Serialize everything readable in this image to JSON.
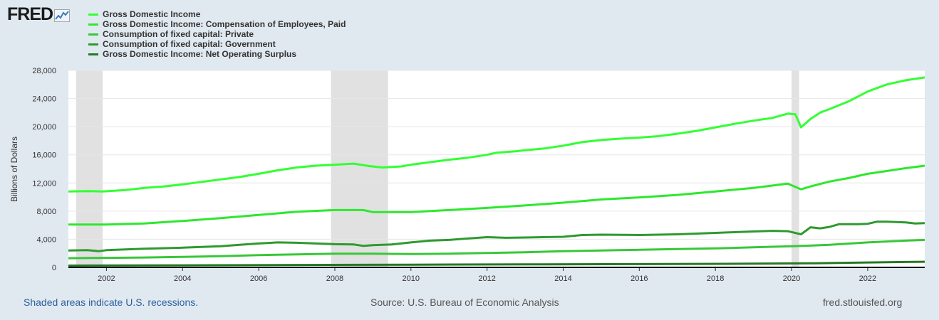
{
  "logo": {
    "text": "FRED",
    "icon": "trend-graph-icon"
  },
  "legend": [
    {
      "label": "Gross Domestic Income",
      "color": "#33ff33"
    },
    {
      "label": "Gross Domestic Income: Compensation of Employees, Paid",
      "color": "#2de82d"
    },
    {
      "label": "Consumption of fixed capital: Private",
      "color": "#38c738"
    },
    {
      "label": "Consumption of fixed capital: Government",
      "color": "#2e9a2e"
    },
    {
      "label": "Gross Domestic Income: Net Operating Surplus",
      "color": "#237a23"
    }
  ],
  "footer": {
    "left": "Shaded areas indicate U.S. recessions.",
    "center": "Source: U.S. Bureau of Economic Analysis",
    "right": "fred.stlouisfed.org"
  },
  "chart_data": {
    "type": "line",
    "ylabel": "Billions of Dollars",
    "xlim": [
      2001.0,
      2023.5
    ],
    "ylim": [
      0,
      28000
    ],
    "y_ticks": [
      0,
      4000,
      8000,
      12000,
      16000,
      20000,
      24000,
      28000
    ],
    "y_tick_labels": [
      "0",
      "4,000",
      "8,000",
      "12,000",
      "16,000",
      "20,000",
      "24,000",
      "28,000"
    ],
    "x_ticks": [
      2002,
      2004,
      2006,
      2008,
      2010,
      2012,
      2014,
      2016,
      2018,
      2020,
      2022
    ],
    "x_tick_labels": [
      "2002",
      "2004",
      "2006",
      "2008",
      "2010",
      "2012",
      "2014",
      "2016",
      "2018",
      "2020",
      "2022"
    ],
    "grid": true,
    "recessions": [
      [
        2001.2,
        2001.9
      ],
      [
        2007.9,
        2009.4
      ],
      [
        2020.0,
        2020.2
      ]
    ],
    "series": [
      {
        "name": "Gross Domestic Income",
        "color": "#33ff33",
        "points": [
          [
            2001,
            10800
          ],
          [
            2001.5,
            10850
          ],
          [
            2001.9,
            10800
          ],
          [
            2002.5,
            11000
          ],
          [
            2003,
            11300
          ],
          [
            2003.5,
            11500
          ],
          [
            2004,
            11800
          ],
          [
            2004.5,
            12150
          ],
          [
            2005,
            12500
          ],
          [
            2005.5,
            12850
          ],
          [
            2006,
            13300
          ],
          [
            2006.5,
            13800
          ],
          [
            2007,
            14200
          ],
          [
            2007.5,
            14450
          ],
          [
            2008,
            14600
          ],
          [
            2008.5,
            14750
          ],
          [
            2008.9,
            14400
          ],
          [
            2009.25,
            14200
          ],
          [
            2009.75,
            14350
          ],
          [
            2010,
            14600
          ],
          [
            2010.5,
            14950
          ],
          [
            2011,
            15300
          ],
          [
            2011.5,
            15600
          ],
          [
            2012,
            16000
          ],
          [
            2012.25,
            16300
          ],
          [
            2012.75,
            16500
          ],
          [
            2013,
            16650
          ],
          [
            2013.5,
            16900
          ],
          [
            2014,
            17300
          ],
          [
            2014.5,
            17800
          ],
          [
            2015,
            18100
          ],
          [
            2015.5,
            18300
          ],
          [
            2016,
            18450
          ],
          [
            2016.5,
            18650
          ],
          [
            2017,
            19000
          ],
          [
            2017.5,
            19400
          ],
          [
            2018,
            19900
          ],
          [
            2018.5,
            20400
          ],
          [
            2019,
            20850
          ],
          [
            2019.5,
            21250
          ],
          [
            2019.9,
            21850
          ],
          [
            2020.1,
            21750
          ],
          [
            2020.25,
            19900
          ],
          [
            2020.5,
            21100
          ],
          [
            2020.75,
            22000
          ],
          [
            2021,
            22500
          ],
          [
            2021.5,
            23600
          ],
          [
            2022,
            25000
          ],
          [
            2022.5,
            26000
          ],
          [
            2023,
            26600
          ],
          [
            2023.5,
            27000
          ]
        ]
      },
      {
        "name": "Gross Domestic Income: Compensation of Employees, Paid",
        "color": "#2de82d",
        "points": [
          [
            2001,
            6100
          ],
          [
            2002,
            6100
          ],
          [
            2003,
            6250
          ],
          [
            2004,
            6600
          ],
          [
            2005,
            7000
          ],
          [
            2006,
            7450
          ],
          [
            2007,
            7900
          ],
          [
            2008,
            8150
          ],
          [
            2008.75,
            8150
          ],
          [
            2009,
            7850
          ],
          [
            2010,
            7850
          ],
          [
            2011,
            8150
          ],
          [
            2012,
            8450
          ],
          [
            2013,
            8800
          ],
          [
            2014,
            9200
          ],
          [
            2015,
            9650
          ],
          [
            2016,
            9950
          ],
          [
            2017,
            10300
          ],
          [
            2018,
            10800
          ],
          [
            2019,
            11300
          ],
          [
            2019.9,
            11900
          ],
          [
            2020.25,
            11100
          ],
          [
            2020.5,
            11500
          ],
          [
            2021,
            12200
          ],
          [
            2021.5,
            12700
          ],
          [
            2022,
            13300
          ],
          [
            2022.5,
            13700
          ],
          [
            2023,
            14100
          ],
          [
            2023.5,
            14450
          ]
        ]
      },
      {
        "name": "Consumption of fixed capital: Private",
        "color": "#38c738",
        "points": [
          [
            2001,
            1300
          ],
          [
            2002,
            1350
          ],
          [
            2003,
            1400
          ],
          [
            2004,
            1500
          ],
          [
            2005,
            1600
          ],
          [
            2006,
            1750
          ],
          [
            2007,
            1850
          ],
          [
            2008,
            1950
          ],
          [
            2009,
            1950
          ],
          [
            2010,
            1900
          ],
          [
            2011,
            1950
          ],
          [
            2012,
            2050
          ],
          [
            2013,
            2150
          ],
          [
            2014,
            2300
          ],
          [
            2015,
            2400
          ],
          [
            2016,
            2500
          ],
          [
            2017,
            2600
          ],
          [
            2018,
            2700
          ],
          [
            2019,
            2850
          ],
          [
            2020,
            3000
          ],
          [
            2021,
            3200
          ],
          [
            2022,
            3550
          ],
          [
            2023,
            3800
          ],
          [
            2023.5,
            3900
          ]
        ]
      },
      {
        "name": "Consumption of fixed capital: Government",
        "color": "#2e9a2e",
        "points": [
          [
            2001,
            2400
          ],
          [
            2001.5,
            2450
          ],
          [
            2001.8,
            2300
          ],
          [
            2002,
            2450
          ],
          [
            2002.5,
            2550
          ],
          [
            2003,
            2650
          ],
          [
            2004,
            2800
          ],
          [
            2005,
            3000
          ],
          [
            2005.5,
            3200
          ],
          [
            2006,
            3400
          ],
          [
            2006.5,
            3550
          ],
          [
            2007,
            3500
          ],
          [
            2007.5,
            3400
          ],
          [
            2008,
            3300
          ],
          [
            2008.5,
            3250
          ],
          [
            2008.75,
            3050
          ],
          [
            2009,
            3150
          ],
          [
            2009.5,
            3250
          ],
          [
            2010,
            3550
          ],
          [
            2010.5,
            3800
          ],
          [
            2011,
            3900
          ],
          [
            2011.5,
            4100
          ],
          [
            2012,
            4300
          ],
          [
            2012.5,
            4200
          ],
          [
            2013,
            4250
          ],
          [
            2014,
            4350
          ],
          [
            2014.5,
            4600
          ],
          [
            2015,
            4650
          ],
          [
            2016,
            4600
          ],
          [
            2017,
            4700
          ],
          [
            2018,
            4900
          ],
          [
            2018.5,
            5000
          ],
          [
            2019,
            5100
          ],
          [
            2019.5,
            5200
          ],
          [
            2019.9,
            5150
          ],
          [
            2020.25,
            4700
          ],
          [
            2020.5,
            5700
          ],
          [
            2020.75,
            5550
          ],
          [
            2021,
            5750
          ],
          [
            2021.25,
            6150
          ],
          [
            2021.75,
            6150
          ],
          [
            2022,
            6200
          ],
          [
            2022.25,
            6500
          ],
          [
            2022.5,
            6500
          ],
          [
            2023,
            6400
          ],
          [
            2023.25,
            6250
          ],
          [
            2023.5,
            6300
          ]
        ]
      },
      {
        "name": "Gross Domestic Income: Net Operating Surplus",
        "color": "#237a23",
        "points": [
          [
            2001,
            250
          ],
          [
            2004,
            290
          ],
          [
            2007,
            340
          ],
          [
            2010,
            380
          ],
          [
            2013,
            420
          ],
          [
            2016,
            470
          ],
          [
            2019,
            530
          ],
          [
            2020.5,
            580
          ],
          [
            2021.5,
            660
          ],
          [
            2022.5,
            740
          ],
          [
            2023.5,
            800
          ]
        ]
      }
    ]
  }
}
